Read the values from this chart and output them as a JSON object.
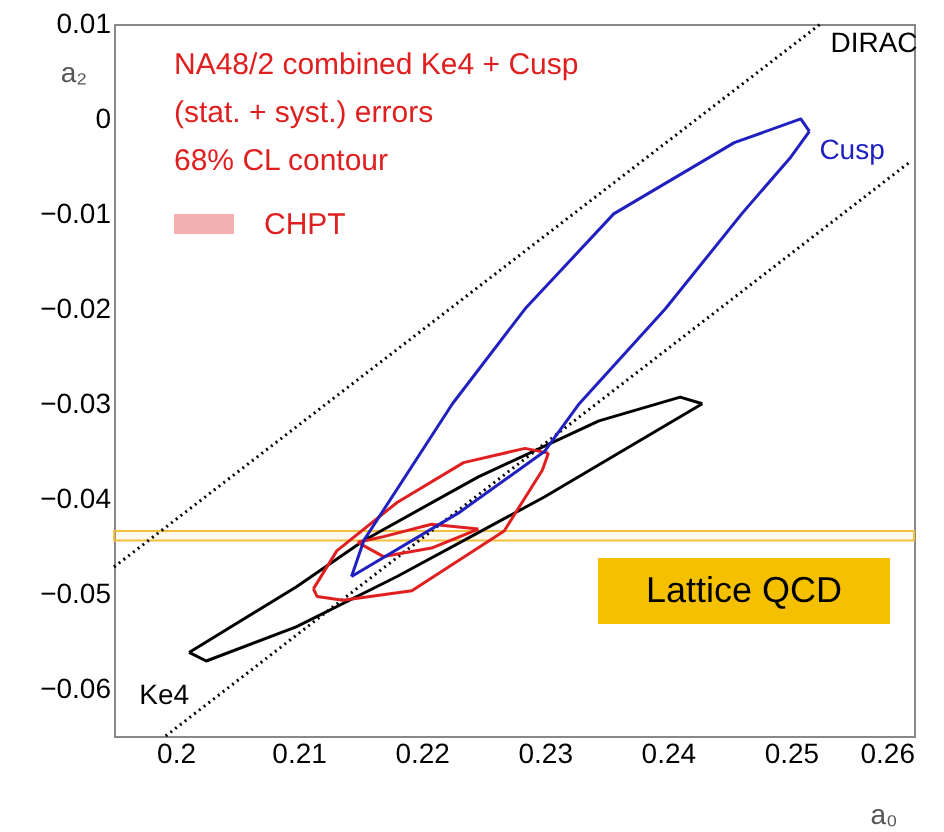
{
  "chart_data": {
    "type": "line",
    "xlabel": "a₀",
    "ylabel": "a₂",
    "xlim": [
      0.195,
      0.26
    ],
    "xticks": [
      0.2,
      0.21,
      0.22,
      0.23,
      0.24,
      0.25,
      0.26
    ],
    "ylim": [
      -0.065,
      0.01
    ],
    "yticks": [
      0.01,
      0,
      -0.01,
      -0.02,
      -0.03,
      -0.04,
      -0.05,
      -0.06
    ],
    "grid": false,
    "legend": "top left",
    "annotations": [
      "NA48/2 combined Ke4 + Cusp",
      "(stat. + syst.) errors",
      "68% CL contour",
      "Lattice QCD"
    ],
    "bands": [
      {
        "axis": "y",
        "from": -0.0444,
        "to": -0.0434,
        "color": "#f0c040"
      }
    ],
    "series": [
      {
        "name": "DIRAC",
        "color": "#000000",
        "line_style": "dotted",
        "x": [
          0.195,
          0.2524
        ],
        "values": [
          -0.0472,
          0.01
        ]
      },
      {
        "color": "#000000",
        "line_style": "dotted",
        "x": [
          0.1992,
          0.2598
        ],
        "values": [
          -0.065,
          -0.0044
        ]
      },
      {
        "name": "Ke4",
        "color": "#000000",
        "x": [
          0.2011,
          0.2098,
          0.2153,
          0.2246,
          0.2344,
          0.241,
          0.2428
        ],
        "values": [
          -0.0562,
          -0.0493,
          -0.0444,
          -0.0377,
          -0.0318,
          -0.0293,
          -0.03
        ]
      },
      {
        "color": "#000000",
        "x": [
          0.2011,
          0.2025,
          0.2098,
          0.218,
          0.23,
          0.2377,
          0.2428
        ],
        "values": [
          -0.0562,
          -0.0571,
          -0.0535,
          -0.0482,
          -0.0398,
          -0.0339,
          -0.03
        ]
      },
      {
        "color": "#e02020",
        "x": [
          0.2112,
          0.2131,
          0.218,
          0.2234,
          0.2284,
          0.2303
        ],
        "values": [
          -0.0495,
          -0.0455,
          -0.0404,
          -0.0362,
          -0.0347,
          -0.0352
        ]
      },
      {
        "color": "#e02020",
        "x": [
          0.2112,
          0.2115,
          0.2136,
          0.2192,
          0.2267,
          0.2298,
          0.2303
        ],
        "values": [
          -0.0495,
          -0.0503,
          -0.0507,
          -0.0497,
          -0.0434,
          -0.037,
          -0.0352
        ]
      },
      {
        "name": "CHPT",
        "color": "#e02020",
        "x": [
          0.2148,
          0.2169,
          0.2208,
          0.2246
        ],
        "values": [
          -0.0446,
          -0.044,
          -0.0427,
          -0.0432
        ]
      },
      {
        "color": "#e02020",
        "x": [
          0.2148,
          0.2169,
          0.2208,
          0.2246
        ],
        "values": [
          -0.0446,
          -0.0461,
          -0.0452,
          -0.0432
        ]
      },
      {
        "name": "Cusp",
        "color": "#2020c0",
        "x": [
          0.2143,
          0.2153,
          0.2225,
          0.2284,
          0.2356,
          0.2454,
          0.2508,
          0.2515
        ],
        "values": [
          -0.0482,
          -0.0444,
          -0.03,
          -0.02,
          -0.01,
          -0.0025,
          0.0,
          -0.0013
        ]
      },
      {
        "color": "#2020c0",
        "x": [
          0.2143,
          0.223,
          0.23,
          0.2328,
          0.2398,
          0.246,
          0.25,
          0.2515
        ],
        "values": [
          -0.0482,
          -0.0415,
          -0.035,
          -0.03,
          -0.02,
          -0.01,
          -0.004,
          -0.0013
        ]
      }
    ]
  }
}
